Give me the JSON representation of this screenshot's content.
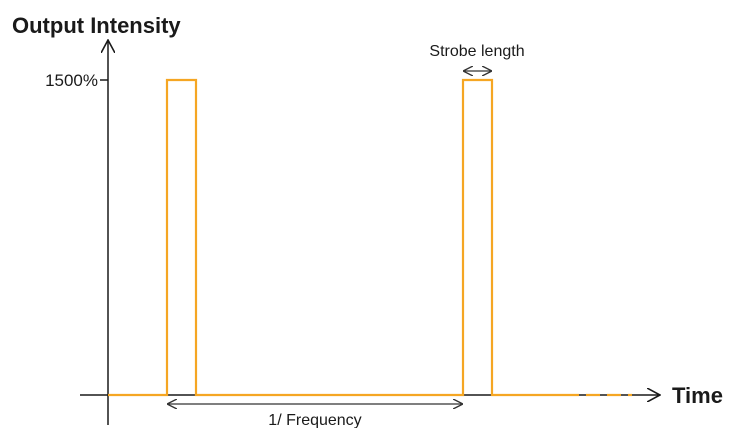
{
  "diagram": {
    "title": "Output Intensity",
    "x_axis_label": "Time",
    "y_tick_label": "1500%",
    "strobe_label": "Strobe length",
    "period_label": "1/ Frequency",
    "colors": {
      "pulse": "#f5a623",
      "axis": "#1a1a1a",
      "arrow": "#333333"
    }
  }
}
